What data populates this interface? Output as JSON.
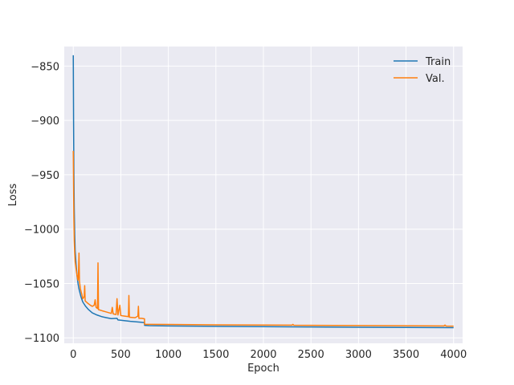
{
  "chart_data": {
    "type": "line",
    "title": "",
    "xlabel": "Epoch",
    "ylabel": "Loss",
    "xlim": [
      -95,
      4095
    ],
    "ylim": [
      -1105,
      -832
    ],
    "xticks": [
      0,
      500,
      1000,
      1500,
      2000,
      2500,
      3000,
      3500,
      4000
    ],
    "yticks": [
      -1100,
      -1050,
      -1000,
      -950,
      -900,
      -850
    ],
    "xtick_labels": [
      "0",
      "500",
      "1000",
      "1500",
      "2000",
      "2500",
      "3000",
      "3500",
      "4000"
    ],
    "ytick_labels": [
      "−1100",
      "−1050",
      "−1000",
      "−950",
      "−900",
      "−850"
    ],
    "grid": true,
    "legend_position": "top-right",
    "series": [
      {
        "name": "Train",
        "color": "#1f77b4",
        "points": [
          [
            0,
            -840
          ],
          [
            3,
            -900
          ],
          [
            6,
            -945
          ],
          [
            10,
            -980
          ],
          [
            15,
            -1005
          ],
          [
            20,
            -1020
          ],
          [
            30,
            -1033
          ],
          [
            40,
            -1043
          ],
          [
            50,
            -1050
          ],
          [
            60,
            -1055
          ],
          [
            80,
            -1062
          ],
          [
            100,
            -1067
          ],
          [
            130,
            -1071
          ],
          [
            160,
            -1074
          ],
          [
            200,
            -1077
          ],
          [
            250,
            -1079
          ],
          [
            300,
            -1080.5
          ],
          [
            350,
            -1081.5
          ],
          [
            400,
            -1082.3
          ],
          [
            460,
            -1082
          ],
          [
            470,
            -1083.5
          ],
          [
            500,
            -1083.8
          ],
          [
            600,
            -1084.8
          ],
          [
            700,
            -1085.5
          ],
          [
            749,
            -1086
          ],
          [
            750,
            -1088.5
          ],
          [
            800,
            -1088.8
          ],
          [
            1000,
            -1089
          ],
          [
            1500,
            -1089.4
          ],
          [
            2000,
            -1089.7
          ],
          [
            2500,
            -1090
          ],
          [
            3000,
            -1090.2
          ],
          [
            3500,
            -1090.4
          ],
          [
            4000,
            -1090.6
          ]
        ]
      },
      {
        "name": "Val.",
        "color": "#ff7f0e",
        "points": [
          [
            0,
            -928
          ],
          [
            3,
            -960
          ],
          [
            6,
            -990
          ],
          [
            10,
            -1010
          ],
          [
            15,
            -1022
          ],
          [
            20,
            -1030
          ],
          [
            30,
            -1037
          ],
          [
            40,
            -1043
          ],
          [
            50,
            -1047
          ],
          [
            55,
            -1040
          ],
          [
            60,
            -1022
          ],
          [
            65,
            -1048
          ],
          [
            75,
            -1055
          ],
          [
            90,
            -1060
          ],
          [
            100,
            -1064
          ],
          [
            115,
            -1062
          ],
          [
            120,
            -1052
          ],
          [
            125,
            -1066
          ],
          [
            150,
            -1068
          ],
          [
            180,
            -1070
          ],
          [
            200,
            -1071
          ],
          [
            220,
            -1070
          ],
          [
            230,
            -1065
          ],
          [
            240,
            -1072
          ],
          [
            255,
            -1073
          ],
          [
            260,
            -1031
          ],
          [
            265,
            -1074
          ],
          [
            300,
            -1075
          ],
          [
            340,
            -1076
          ],
          [
            380,
            -1077
          ],
          [
            400,
            -1077.5
          ],
          [
            410,
            -1072
          ],
          [
            420,
            -1078
          ],
          [
            450,
            -1078.5
          ],
          [
            460,
            -1064
          ],
          [
            470,
            -1079
          ],
          [
            490,
            -1070
          ],
          [
            500,
            -1079.5
          ],
          [
            540,
            -1080
          ],
          [
            580,
            -1080.5
          ],
          [
            585,
            -1061
          ],
          [
            590,
            -1081
          ],
          [
            650,
            -1081.5
          ],
          [
            680,
            -1080
          ],
          [
            685,
            -1071
          ],
          [
            690,
            -1082
          ],
          [
            720,
            -1082
          ],
          [
            749,
            -1082.5
          ],
          [
            750,
            -1087.5
          ],
          [
            800,
            -1087.6
          ],
          [
            1000,
            -1087.7
          ],
          [
            1500,
            -1088
          ],
          [
            2000,
            -1088.2
          ],
          [
            2300,
            -1088.3
          ],
          [
            2310,
            -1087.6
          ],
          [
            2320,
            -1088.4
          ],
          [
            2500,
            -1088.5
          ],
          [
            3000,
            -1088.7
          ],
          [
            3500,
            -1088.9
          ],
          [
            3900,
            -1089
          ],
          [
            3910,
            -1088.2
          ],
          [
            3920,
            -1089.1
          ],
          [
            4000,
            -1089.2
          ]
        ]
      }
    ]
  }
}
